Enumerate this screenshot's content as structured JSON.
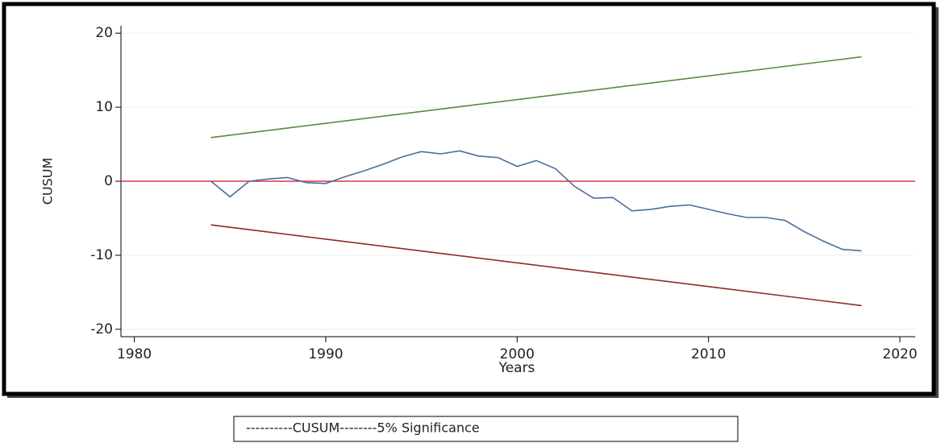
{
  "chart_data": {
    "type": "line",
    "y_axis_label": "CUSUM",
    "x_axis_label": "Years",
    "legend_text": "----------CUSUM--------5% Significance",
    "xlim": [
      1979.3,
      2020.8
    ],
    "xticks": [
      1980,
      1990,
      2000,
      2010,
      2020
    ],
    "ylim": [
      -21,
      21
    ],
    "yticks": [
      -20,
      -10,
      0,
      10,
      20
    ],
    "grid": true,
    "reference_line": {
      "value": 0,
      "color": "#e0304a"
    },
    "series": [
      {
        "color": "#4a6f9a",
        "x": [
          1984,
          1985,
          1986,
          1987,
          1988,
          1989,
          1990,
          1991,
          1992,
          1993,
          1994,
          1995,
          1996,
          1997,
          1998,
          1999,
          2000,
          2001,
          2002,
          2003,
          2004,
          2005,
          2006,
          2007,
          2008,
          2009,
          2010,
          2011,
          2012,
          2013,
          2014,
          2015,
          2016,
          2017,
          2018
        ],
        "values": [
          0,
          -2.1,
          0,
          0.3,
          0.5,
          -0.2,
          -0.3,
          0.6,
          1.4,
          2.3,
          3.3,
          4.0,
          3.7,
          4.1,
          3.4,
          3.2,
          2.0,
          2.8,
          1.7,
          -0.7,
          -2.3,
          -2.2,
          -4.0,
          -3.8,
          -3.4,
          -3.2,
          -3.8,
          -4.4,
          -4.9,
          -4.9,
          -5.3,
          -6.8,
          -8.1,
          -9.2,
          -9.4
        ]
      },
      {
        "color": "#5a8a3a",
        "x": [
          1984,
          2018
        ],
        "values": [
          5.9,
          16.8
        ]
      },
      {
        "color": "#8e2a2a",
        "x": [
          1984,
          2018
        ],
        "values": [
          -5.9,
          -16.8
        ]
      }
    ]
  }
}
